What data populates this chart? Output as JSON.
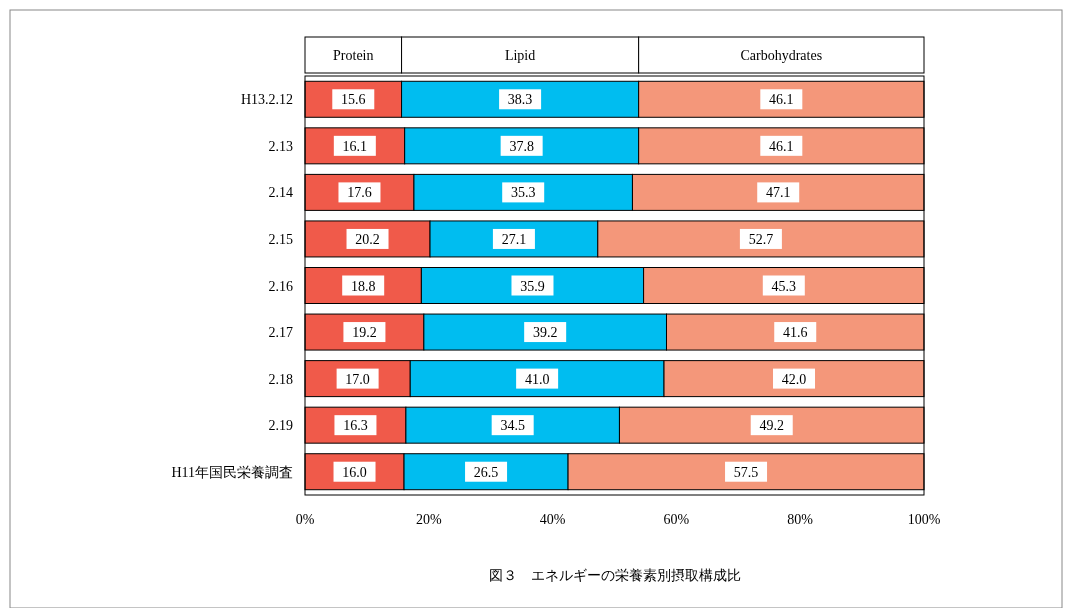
{
  "chart_data": {
    "type": "bar",
    "orientation": "horizontal",
    "stacked": true,
    "grid": false,
    "categories": [
      "H13.2.12",
      "2.13",
      "2.14",
      "2.15",
      "2.16",
      "2.17",
      "2.18",
      "2.19",
      "H11年国民栄養調査"
    ],
    "series": [
      {
        "name": "Protein",
        "color": "#f05a4a",
        "values": [
          15.6,
          16.1,
          17.6,
          20.2,
          18.8,
          19.2,
          17.0,
          16.3,
          16.0
        ],
        "value_labels": [
          "15.6",
          "16.1",
          "17.6",
          "20.2",
          "18.8",
          "19.2",
          "17.0",
          "16.3",
          "16.0"
        ]
      },
      {
        "name": "Lipid",
        "color": "#00bdf0",
        "values": [
          38.3,
          37.8,
          35.3,
          27.1,
          35.9,
          39.2,
          41.0,
          34.5,
          26.5
        ],
        "value_labels": [
          "38.3",
          "37.8",
          "35.3",
          "27.1",
          "35.9",
          "39.2",
          "41.0",
          "34.5",
          "26.5"
        ]
      },
      {
        "name": "Carbohydrates",
        "color": "#f4977a",
        "values": [
          46.1,
          46.1,
          47.1,
          52.7,
          45.3,
          41.6,
          42.0,
          49.2,
          57.5
        ],
        "value_labels": [
          "46.1",
          "46.1",
          "47.1",
          "52.7",
          "45.3",
          "41.6",
          "42.0",
          "49.2",
          "57.5"
        ]
      }
    ],
    "xlim": [
      0,
      100
    ],
    "xticks": [
      {
        "value": 0,
        "label": "0%"
      },
      {
        "value": 20,
        "label": "20%"
      },
      {
        "value": 40,
        "label": "40%"
      },
      {
        "value": 60,
        "label": "60%"
      },
      {
        "value": 80,
        "label": "80%"
      },
      {
        "value": 100,
        "label": "100%"
      }
    ],
    "annotations": [
      "図３　エネルギーの栄養素別摂取構成比"
    ]
  }
}
